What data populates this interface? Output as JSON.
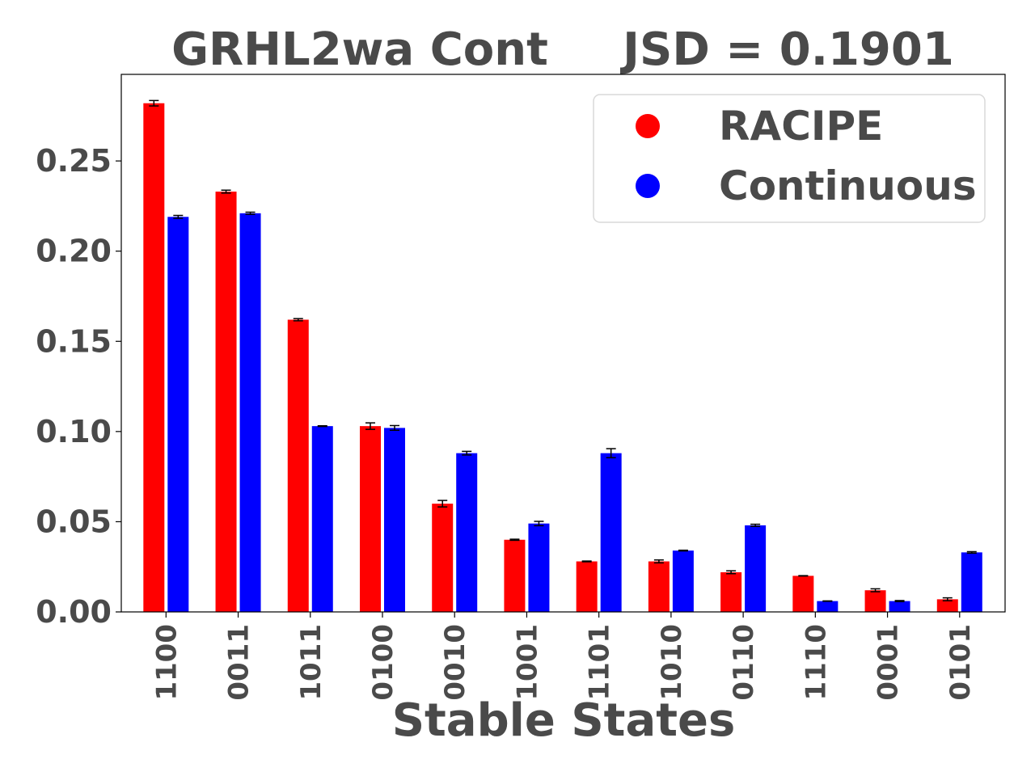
{
  "chart_data": {
    "type": "bar",
    "title_left": "GRHL2wa Cont",
    "title_right": "JSD = 0.1901",
    "xlabel": "Stable States",
    "ylabel": "",
    "ylim": [
      0,
      0.298
    ],
    "yticks": [
      "0.00",
      "0.05",
      "0.10",
      "0.15",
      "0.20",
      "0.25"
    ],
    "grid": false,
    "legend_position": "top-right",
    "categories": [
      "1100",
      "0011",
      "1011",
      "0100",
      "0010",
      "1001",
      "1101",
      "1010",
      "0110",
      "1110",
      "0001",
      "0101"
    ],
    "series": [
      {
        "name": "RACIPE",
        "color": "#ff0000",
        "values": [
          0.282,
          0.233,
          0.162,
          0.103,
          0.06,
          0.04,
          0.028,
          0.028,
          0.022,
          0.02,
          0.012,
          0.007
        ],
        "errors": [
          0.0015,
          0.0008,
          0.0006,
          0.0018,
          0.0018,
          0.0003,
          0.0002,
          0.0008,
          0.0008,
          0.0001,
          0.0008,
          0.0008
        ]
      },
      {
        "name": "Continuous",
        "color": "#0000ff",
        "values": [
          0.219,
          0.221,
          0.103,
          0.102,
          0.088,
          0.049,
          0.088,
          0.034,
          0.048,
          0.006,
          0.006,
          0.033
        ],
        "errors": [
          0.0008,
          0.0006,
          0.0002,
          0.0013,
          0.001,
          0.0012,
          0.0025,
          0.0002,
          0.0006,
          0.0001,
          0.0003,
          0.0004
        ]
      }
    ]
  }
}
